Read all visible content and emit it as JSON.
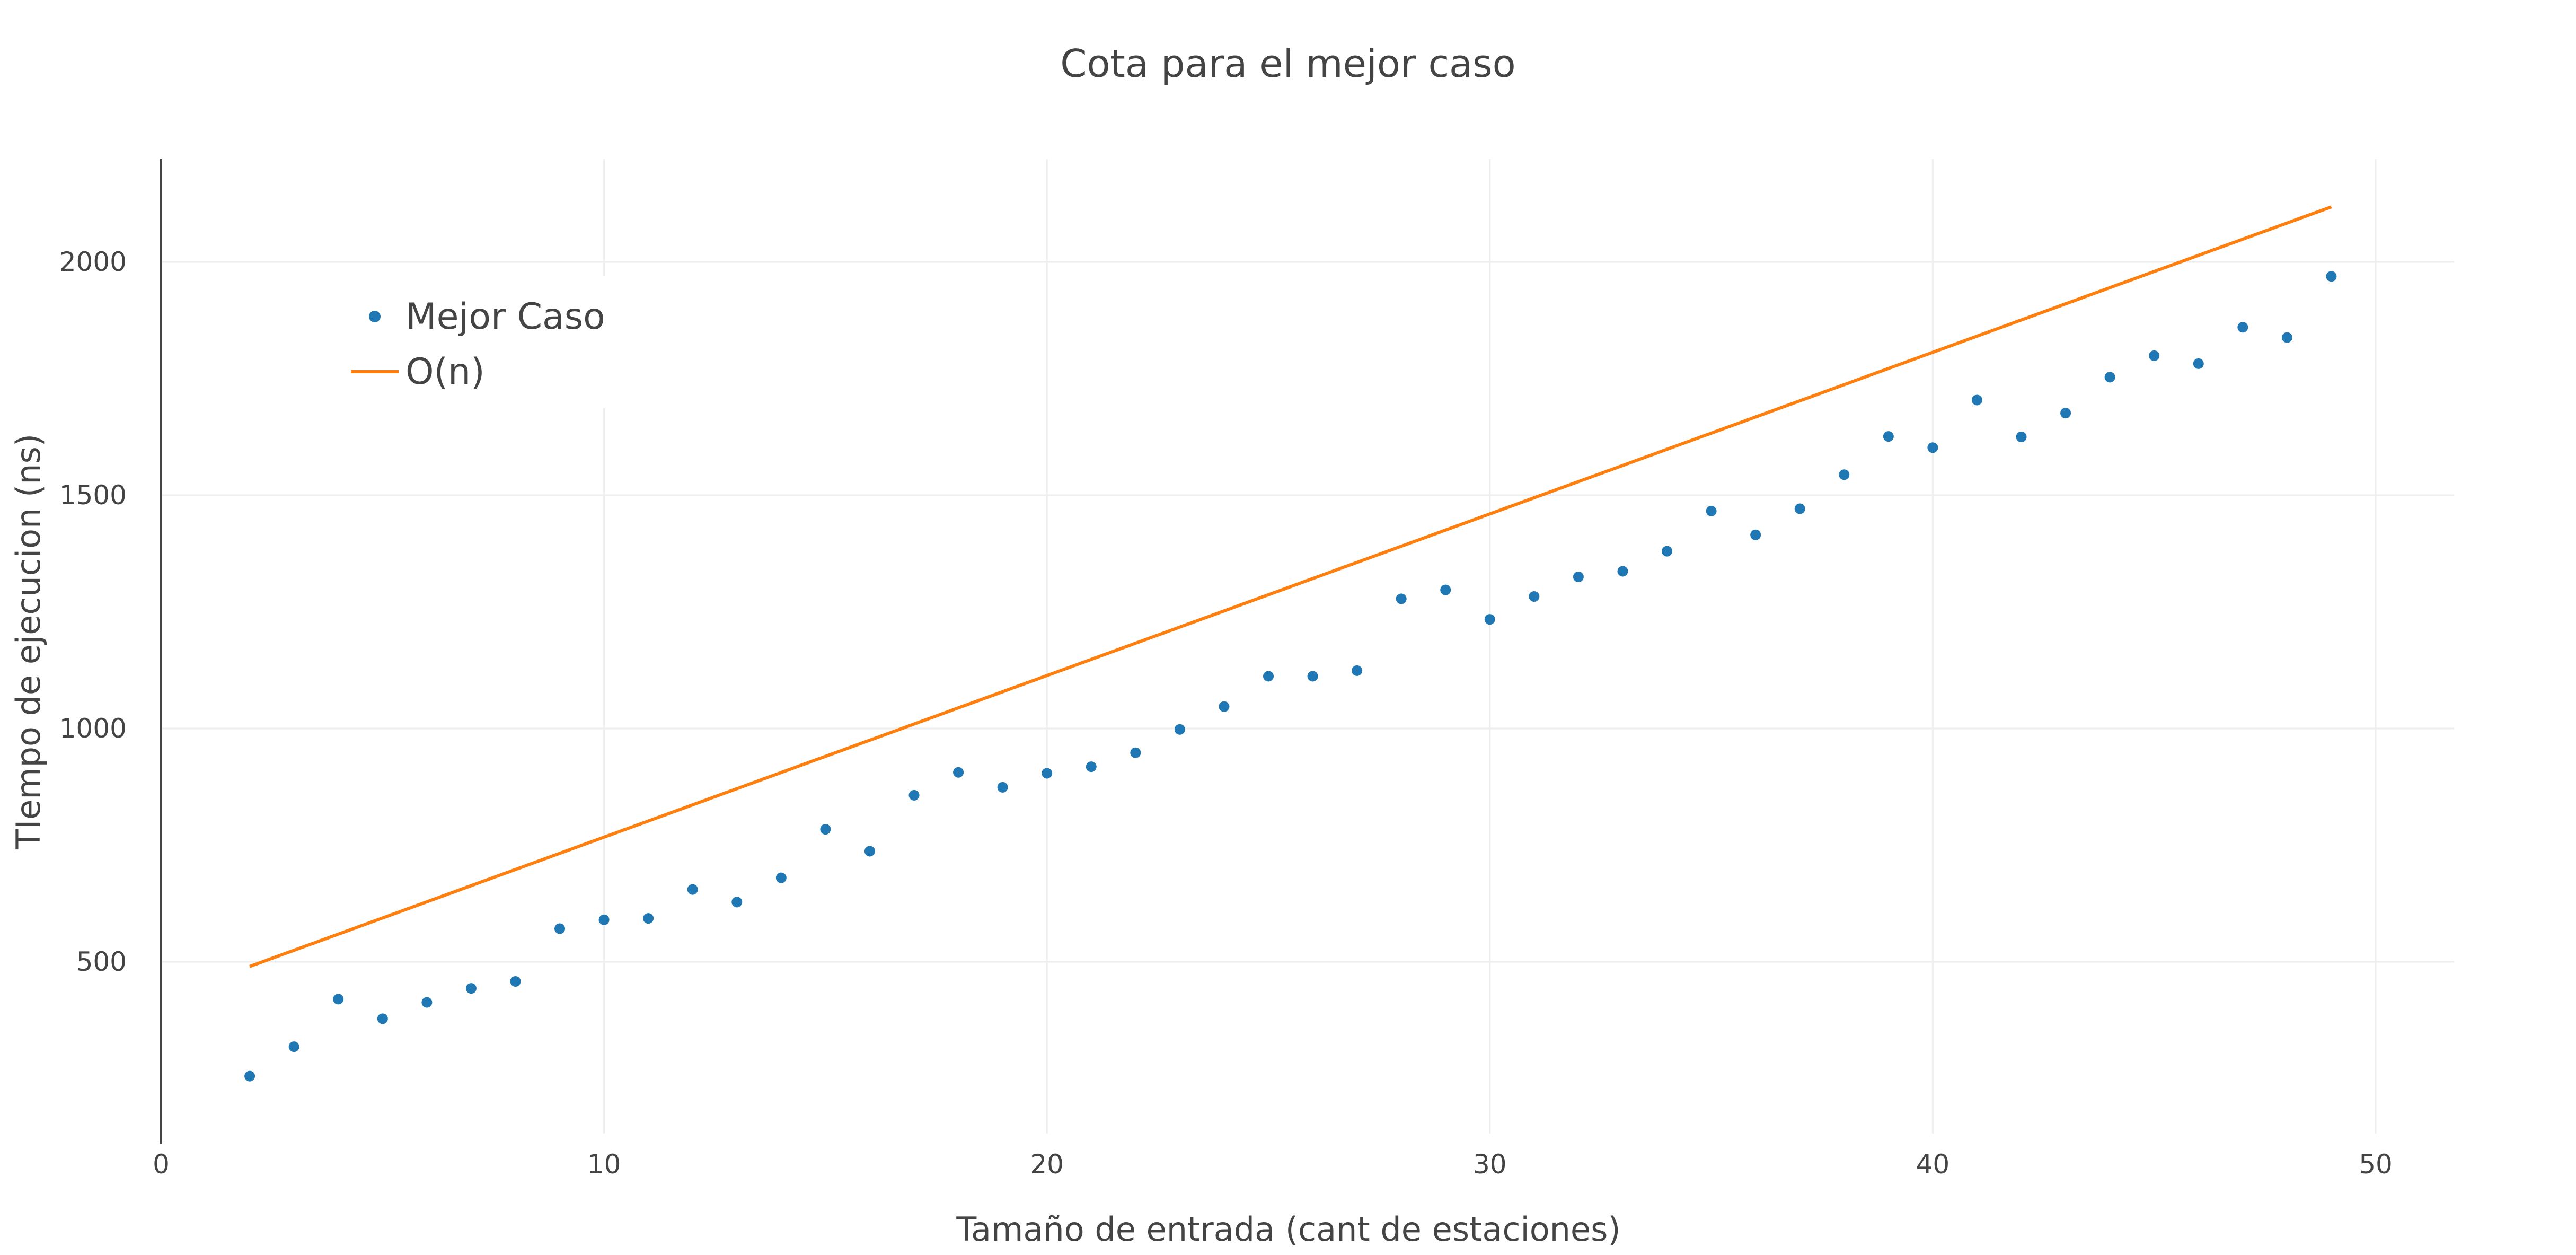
{
  "chart_data": {
    "type": "scatter",
    "title": "Cota para el mejor caso",
    "xlabel": "Tamaño de entrada (cant de estaciones)",
    "ylabel": "TIempo de ejecucion (ns)",
    "xlim": [
      0,
      52
    ],
    "ylim": [
      150,
      2220
    ],
    "x_ticks": [
      0,
      10,
      20,
      30,
      40,
      50
    ],
    "y_ticks": [
      500,
      1000,
      1500,
      2000
    ],
    "grid": true,
    "legend_position": "top-left",
    "series": [
      {
        "name": "Mejor Caso",
        "mode": "markers",
        "color": "#1f77b4",
        "x": [
          2,
          3,
          4,
          5,
          6,
          7,
          8,
          9,
          10,
          11,
          12,
          13,
          14,
          15,
          16,
          17,
          18,
          19,
          20,
          21,
          22,
          23,
          24,
          25,
          26,
          27,
          28,
          29,
          30,
          31,
          32,
          33,
          34,
          35,
          36,
          37,
          38,
          39,
          40,
          41,
          42,
          43,
          44,
          45,
          46,
          47,
          48,
          49
        ],
        "y": [
          255,
          318,
          420,
          378,
          413,
          443,
          458,
          571,
          590,
          593,
          655,
          628,
          680,
          784,
          737,
          857,
          906,
          874,
          904,
          918,
          948,
          998,
          1047,
          1112,
          1112,
          1124,
          1278,
          1297,
          1234,
          1283,
          1325,
          1337,
          1380,
          1466,
          1415,
          1471,
          1544,
          1626,
          1602,
          1704,
          1625,
          1676,
          1753,
          1799,
          1782,
          1860,
          1838,
          1969
        ]
      },
      {
        "name": "O(n)",
        "mode": "line",
        "color": "#ff7f0e",
        "x": [
          2,
          49
        ],
        "y": [
          490,
          2118
        ]
      }
    ]
  }
}
